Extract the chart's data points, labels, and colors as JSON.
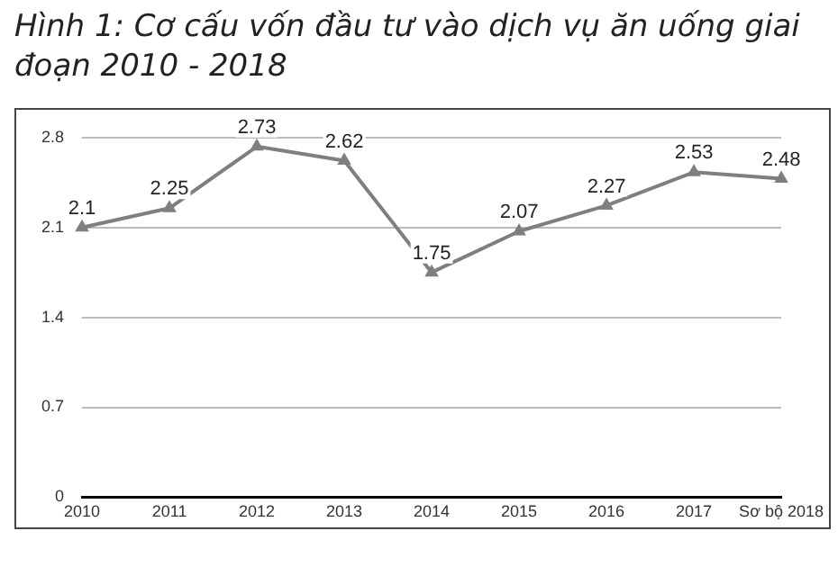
{
  "chart_data": {
    "type": "line",
    "title": "Hình 1: Cơ cấu vốn đầu tư vào dịch vụ ăn uống giai đoạn 2010 - 2018",
    "categories": [
      "2010",
      "2011",
      "2012",
      "2013",
      "2014",
      "2015",
      "2016",
      "2017",
      "Sơ bộ 2018"
    ],
    "series": [
      {
        "color": "#7f7f7f",
        "values": [
          2.1,
          2.25,
          2.73,
          2.62,
          1.75,
          2.07,
          2.27,
          2.53,
          2.48
        ]
      }
    ],
    "ylim": [
      0,
      2.8
    ],
    "yticks": [
      0,
      0.7,
      1.4,
      2.1,
      2.8
    ],
    "grid": "y",
    "data_labels": true,
    "marker": "triangle",
    "line_style": "solid"
  }
}
